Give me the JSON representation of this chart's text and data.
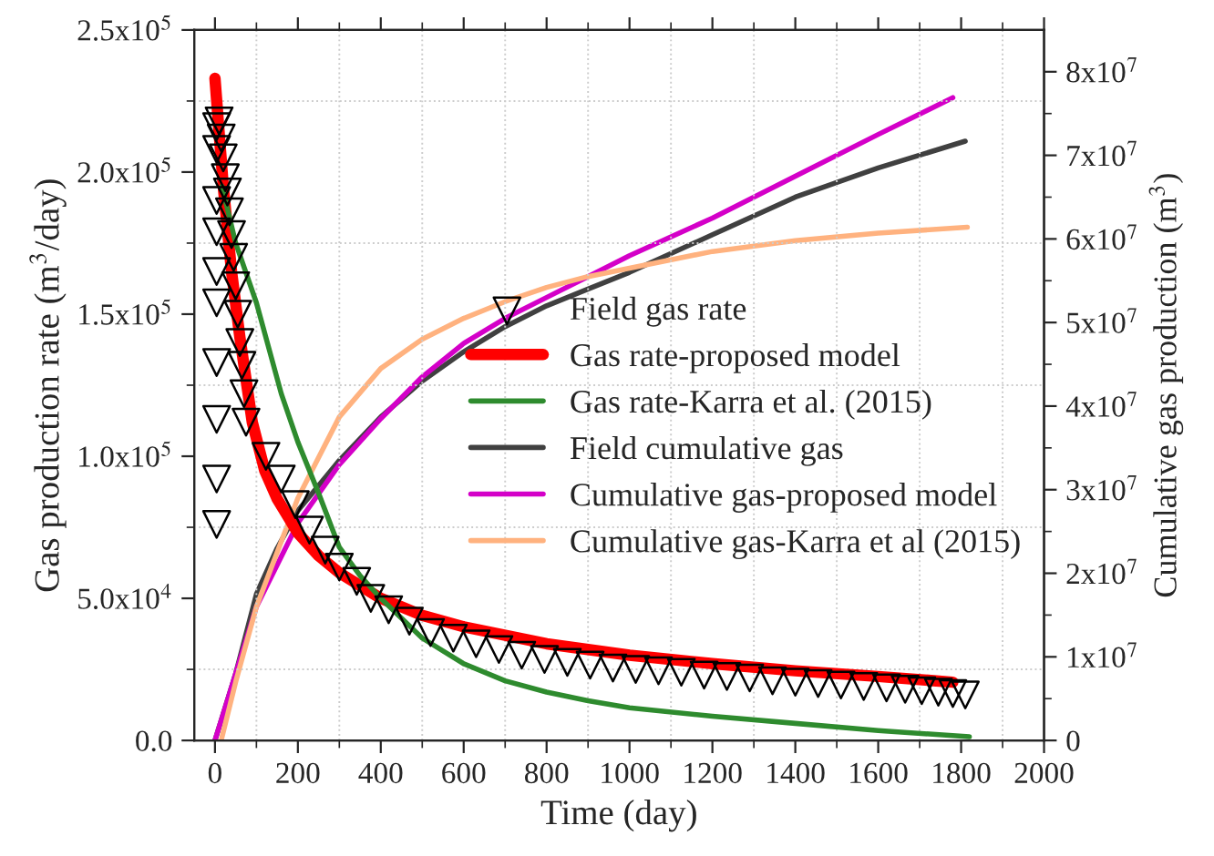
{
  "chart_data": {
    "type": "line",
    "xlabel": "Time (day)",
    "ylabel": "Gas production rate (m$^{3}$/day)",
    "y2label": "Cumulative gas production (m$^{3}$)",
    "xlim": [
      -50,
      2000
    ],
    "xticks": [
      0,
      200,
      400,
      600,
      800,
      1000,
      1200,
      1400,
      1600,
      1800,
      2000
    ],
    "ylim": [
      0,
      250000
    ],
    "yticks": [
      {
        "value": 0,
        "label": "0.0"
      },
      {
        "value": 50000,
        "label": "5.0x10$^{4}$"
      },
      {
        "value": 100000,
        "label": "1.0x10$^{5}$"
      },
      {
        "value": 150000,
        "label": "1.5x10$^{5}$"
      },
      {
        "value": 200000,
        "label": "2.0x10$^{5}$"
      },
      {
        "value": 250000,
        "label": "2.5x10$^{5}$"
      }
    ],
    "y2lim": [
      0,
      85000000
    ],
    "y2ticks": [
      {
        "value": 0,
        "label": "0"
      },
      {
        "value": 10000000,
        "label": "1x10$^{7}$"
      },
      {
        "value": 20000000,
        "label": "2x10$^{7}$"
      },
      {
        "value": 30000000,
        "label": "3x10$^{7}$"
      },
      {
        "value": 40000000,
        "label": "4x10$^{7}$"
      },
      {
        "value": 50000000,
        "label": "5x10$^{7}$"
      },
      {
        "value": 60000000,
        "label": "6x10$^{7}$"
      },
      {
        "value": 70000000,
        "label": "7x10$^{7}$"
      },
      {
        "value": 80000000,
        "label": "8x10$^{7}$"
      }
    ],
    "grid": true,
    "legend": "right",
    "series": [
      {
        "name": "Field gas rate",
        "type": "scatter",
        "marker": "triangle",
        "color": "#000000",
        "x": [
          4,
          4,
          4,
          4,
          4,
          4,
          4,
          4,
          4,
          4,
          10,
          15,
          20,
          25,
          30,
          35,
          40,
          45,
          50,
          55,
          60,
          65,
          70,
          75,
          123,
          160,
          194,
          228,
          266,
          300,
          342,
          376,
          419,
          469,
          520,
          575,
          630,
          685,
          740,
          795,
          850,
          905,
          960,
          1015,
          1070,
          1125,
          1180,
          1235,
          1290,
          1345,
          1400,
          1455,
          1510,
          1565,
          1620,
          1665,
          1705,
          1745,
          1780,
          1810
        ],
        "values": [
          216000,
          208000,
          190000,
          179000,
          165000,
          154000,
          133000,
          113000,
          92000,
          76000,
          218000,
          212000,
          205000,
          198000,
          193000,
          186000,
          178000,
          170000,
          160000,
          150000,
          140000,
          132000,
          122000,
          112000,
          100000,
          92000,
          83000,
          74000,
          67000,
          61000,
          56000,
          50000,
          46000,
          42000,
          38000,
          36000,
          34000,
          32000,
          30000,
          28500,
          27500,
          26500,
          25500,
          25000,
          24500,
          24000,
          23000,
          22500,
          22000,
          21000,
          20500,
          20000,
          19500,
          19000,
          18500,
          18000,
          17500,
          17000,
          16500,
          16000
        ]
      },
      {
        "name": "Gas rate-proposed model",
        "color": "#ff0000",
        "x": [
          0,
          20,
          40,
          60,
          90,
          120,
          150,
          200,
          250,
          300,
          400,
          500,
          600,
          800,
          1000,
          1200,
          1400,
          1600,
          1780
        ],
        "values": [
          233000,
          195000,
          165000,
          142000,
          112000,
          95000,
          85000,
          73000,
          65000,
          59000,
          50000,
          44000,
          40000,
          34000,
          30000,
          27000,
          24500,
          22500,
          20500
        ]
      },
      {
        "name": "Gas rate-Karra et al. (2015)",
        "color": "#2e8b2e",
        "x": [
          17,
          50,
          100,
          160,
          200,
          250,
          300,
          350,
          400,
          500,
          600,
          700,
          800,
          900,
          1000,
          1200,
          1400,
          1600,
          1820
        ],
        "values": [
          195000,
          175000,
          154000,
          122000,
          105000,
          87000,
          68000,
          58000,
          50000,
          36000,
          27000,
          21000,
          17000,
          14000,
          11500,
          8500,
          6000,
          3500,
          1300
        ]
      },
      {
        "name": "Field cumulative gas",
        "axis": "y2",
        "color": "#404040",
        "x": [
          0,
          20,
          50,
          100,
          150,
          200,
          300,
          400,
          500,
          600,
          700,
          800,
          900,
          1000,
          1200,
          1400,
          1600,
          1810
        ],
        "values": [
          0,
          null,
          8000000,
          17500000,
          23000000,
          27500000,
          33500000,
          38700000,
          43000000,
          46500000,
          49500000,
          52000000,
          54000000,
          56000000,
          60500000,
          65000000,
          68500000,
          71700000
        ]
      },
      {
        "name": "Cumulative gas-proposed model",
        "axis": "y2",
        "color": "#d400c8",
        "x": [
          0,
          50,
          100,
          200,
          300,
          400,
          500,
          600,
          700,
          800,
          900,
          1000,
          1200,
          1400,
          1600,
          1780
        ],
        "values": [
          0,
          8000000,
          16000000,
          26000000,
          33000000,
          38500000,
          43500000,
          47500000,
          50500000,
          53000000,
          55500000,
          58000000,
          62500000,
          67500000,
          72500000,
          76900000
        ]
      },
      {
        "name": "Cumulative gas-Karra et al (2015)",
        "axis": "y2",
        "color": "#ffb27f",
        "x": [
          15,
          50,
          100,
          150,
          200,
          300,
          400,
          500,
          600,
          700,
          800,
          900,
          1000,
          1200,
          1400,
          1600,
          1815
        ],
        "values": [
          0,
          7000000,
          16000000,
          22500000,
          29000000,
          38700000,
          44500000,
          48000000,
          50500000,
          52500000,
          54200000,
          55500000,
          56500000,
          58500000,
          59800000,
          60700000,
          61400000
        ]
      }
    ]
  }
}
